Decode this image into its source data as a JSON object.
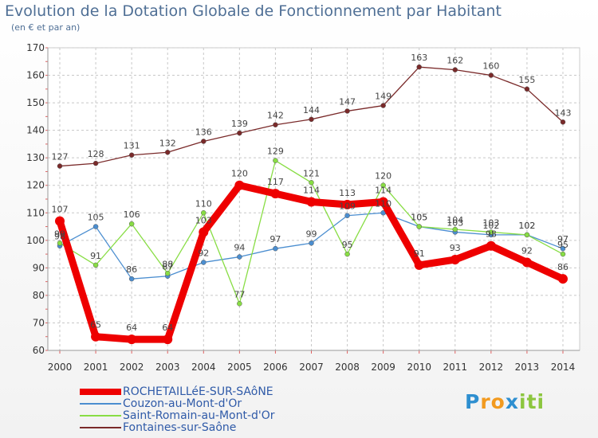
{
  "chart_data": {
    "type": "line",
    "title": "Evolution de la Dotation Globale de Fonctionnement par Habitant",
    "subtitle": "(en € et par an)",
    "x": [
      "2000",
      "2001",
      "2002",
      "2003",
      "2004",
      "2005",
      "2006",
      "2007",
      "2008",
      "2009",
      "2010",
      "2011",
      "2012",
      "2013",
      "2014"
    ],
    "yticks": [
      60,
      70,
      80,
      90,
      100,
      110,
      120,
      130,
      140,
      150,
      160,
      170
    ],
    "ylim": [
      60,
      170
    ],
    "grid": true,
    "series": [
      {
        "name": "ROCHETAILLéE-SUR-SAôNE",
        "color": "#ee0000",
        "values": [
          107,
          65,
          64,
          64,
          103,
          120,
          117,
          114,
          113,
          114,
          91,
          93,
          98,
          92,
          86
        ]
      },
      {
        "name": "Couzon-au-Mont-d'Or",
        "color": "#4b8ed0",
        "values": [
          98,
          105,
          86,
          87,
          92,
          94,
          97,
          99,
          109,
          110,
          105,
          103,
          102,
          102,
          97
        ]
      },
      {
        "name": "Saint-Romain-au-Mont-d'Or",
        "color": "#88dd44",
        "values": [
          99,
          91,
          106,
          88,
          110,
          77,
          129,
          121,
          95,
          120,
          105,
          104,
          103,
          102,
          95
        ]
      },
      {
        "name": "Fontaines-sur-Saône",
        "color": "#7a2a2a",
        "values": [
          127,
          128,
          131,
          132,
          136,
          139,
          142,
          144,
          147,
          149,
          163,
          162,
          160,
          155,
          143
        ]
      }
    ]
  },
  "logo": {
    "letters": [
      "P",
      "r",
      "o",
      "x",
      "i",
      "t",
      "i"
    ],
    "colors": [
      "#2e8fd0",
      "#f29a1f",
      "#f29a1f",
      "#2e8fd0",
      "#8cc63f",
      "#8cc63f",
      "#8cc63f"
    ]
  }
}
